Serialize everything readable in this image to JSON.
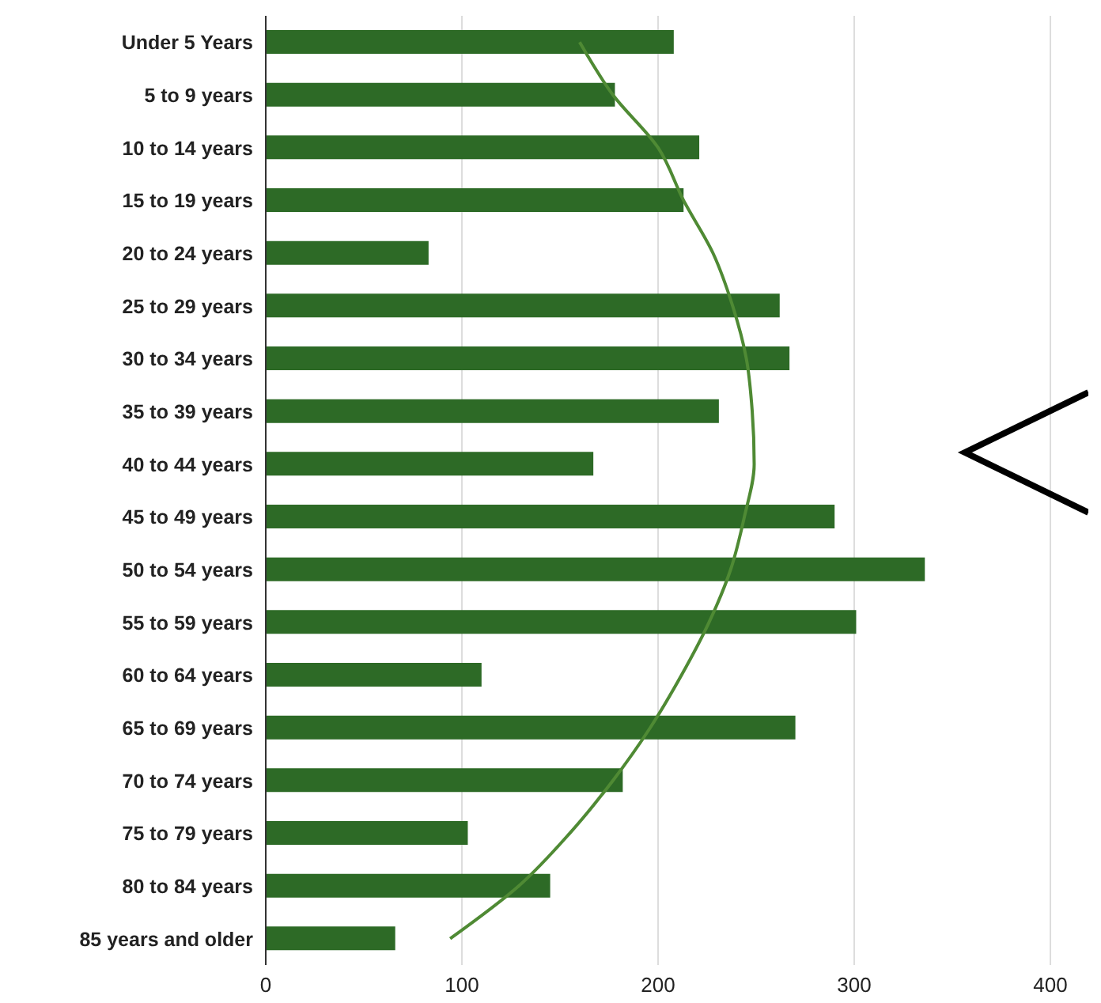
{
  "chart_data": {
    "type": "bar",
    "orientation": "horizontal",
    "categories": [
      "Under 5 Years",
      "5 to 9 years",
      "10 to 14 years",
      "15 to 19 years",
      "20 to 24 years",
      "25 to 29 years",
      "30 to 34 years",
      "35 to 39 years",
      "40 to 44 years",
      "45 to 49 years",
      "50 to 54 years",
      "55 to 59 years",
      "60 to 64 years",
      "65 to 69 years",
      "70 to 74 years",
      "75 to 79 years",
      "80 to 84 years",
      "85 years and older"
    ],
    "series": [
      {
        "color": "#2d6a26",
        "values": [
          208,
          178,
          221,
          213,
          83,
          262,
          267,
          231,
          167,
          290,
          336,
          301,
          110,
          270,
          182,
          103,
          145,
          66
        ]
      },
      {
        "type": "line",
        "color": "#4f8a34",
        "values": [
          160,
          177,
          200,
          213,
          228,
          238,
          245,
          248,
          249,
          244,
          237,
          226,
          212,
          196,
          177,
          155,
          129,
          94
        ]
      }
    ],
    "xlim": [
      0,
      400
    ],
    "xticks": [
      0,
      100,
      200,
      300,
      400
    ],
    "grid": "x"
  }
}
